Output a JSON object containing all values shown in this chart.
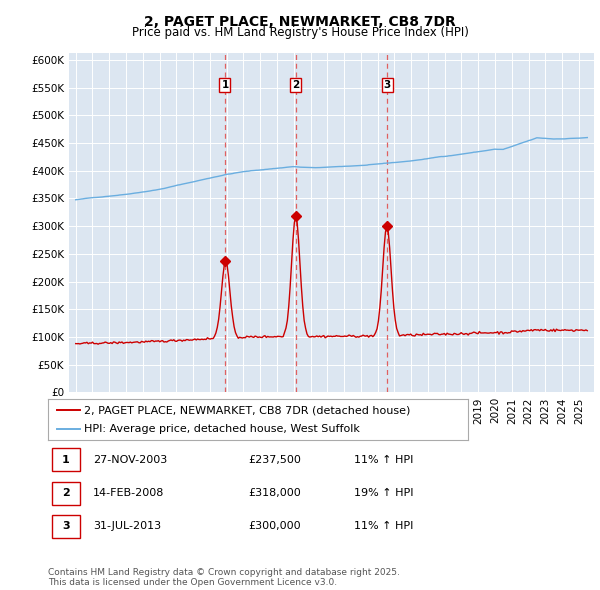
{
  "title": "2, PAGET PLACE, NEWMARKET, CB8 7DR",
  "subtitle": "Price paid vs. HM Land Registry's House Price Index (HPI)",
  "ylim": [
    0,
    612500
  ],
  "yticks": [
    0,
    50000,
    100000,
    150000,
    200000,
    250000,
    300000,
    350000,
    400000,
    450000,
    500000,
    550000,
    600000
  ],
  "ytick_labels": [
    "£0",
    "£50K",
    "£100K",
    "£150K",
    "£200K",
    "£250K",
    "£300K",
    "£350K",
    "£400K",
    "£450K",
    "£500K",
    "£550K",
    "£600K"
  ],
  "hpi_color": "#6aaee0",
  "price_color": "#cc0000",
  "vline_color": "#e06060",
  "bg_color": "#dce6f1",
  "purchases": [
    {
      "num": 1,
      "date": "27-NOV-2003",
      "price": 237500,
      "pct": "11%",
      "year": 2003.9
    },
    {
      "num": 2,
      "date": "14-FEB-2008",
      "price": 318000,
      "pct": "19%",
      "year": 2008.12
    },
    {
      "num": 3,
      "date": "31-JUL-2013",
      "price": 300000,
      "pct": "11%",
      "year": 2013.58
    }
  ],
  "legend_entries": [
    "2, PAGET PLACE, NEWMARKET, CB8 7DR (detached house)",
    "HPI: Average price, detached house, West Suffolk"
  ],
  "footer": "Contains HM Land Registry data © Crown copyright and database right 2025.\nThis data is licensed under the Open Government Licence v3.0.",
  "title_fontsize": 10,
  "subtitle_fontsize": 8.5,
  "tick_fontsize": 7.5,
  "legend_fontsize": 8,
  "table_fontsize": 8,
  "footer_fontsize": 6.5
}
